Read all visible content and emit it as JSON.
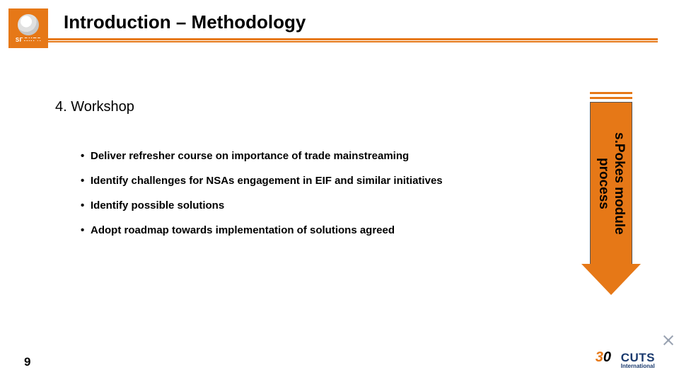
{
  "colors": {
    "accent": "#e67817",
    "text": "#000000",
    "cuts_blue": "#1a3a6e",
    "deco_gray": "#9aa3b2",
    "background": "#ffffff"
  },
  "logo": {
    "caption": "SPOKES"
  },
  "title": "Introduction – Methodology",
  "section": {
    "heading": "4. Workshop",
    "bullets": [
      "Deliver refresher course on importance of trade mainstreaming",
      "Identify challenges for NSAs engagement in EIF and similar initiatives",
      "Identify possible solutions",
      "Adopt roadmap towards implementation of solutions agreed"
    ]
  },
  "arrow": {
    "line1": "s.Pokes module",
    "line2": "process"
  },
  "page_number": "9",
  "footer": {
    "mark_30": "30",
    "brand": "CUTS",
    "subbrand": "International"
  },
  "typography": {
    "title_fontsize": 26,
    "heading_fontsize": 20,
    "bullet_fontsize": 15,
    "arrow_label_fontsize": 19,
    "page_num_fontsize": 17
  }
}
